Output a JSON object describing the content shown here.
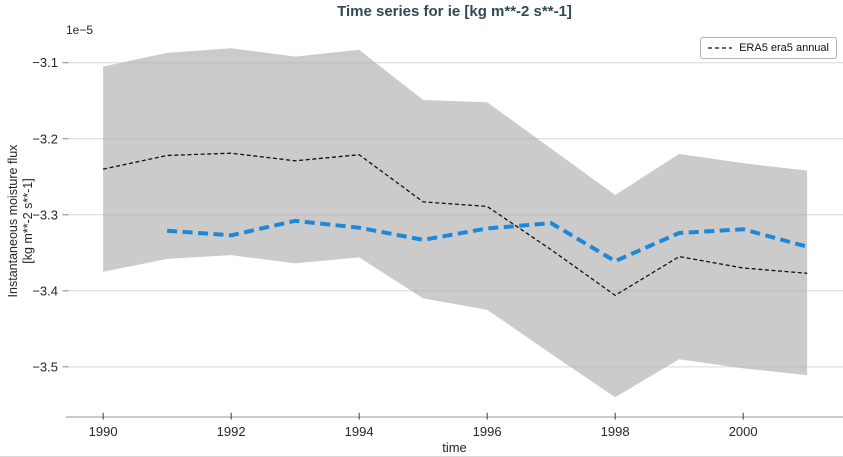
{
  "chart_data": {
    "type": "line",
    "title": "Time series for ie [kg m**-2 s**-1]",
    "xlabel": "time",
    "ylabel_lines": [
      "Instantaneous moisture flux",
      "[kg m**-2 s**-1]"
    ],
    "y_offset_label": "1e−5",
    "y_scale_factor": 1e-05,
    "grid": true,
    "grid_color": "#aaaaaa",
    "axis_color": "#949494",
    "tick_label_color": "#262626",
    "title_color": "#2d4b4f",
    "legend_position": "upper right",
    "xlim": [
      1989.42,
      2001.56
    ],
    "ylim_1e5": [
      -3.566,
      -3.053
    ],
    "x_ticks": [
      1990,
      1992,
      1994,
      1996,
      1998,
      2000
    ],
    "y_ticks_1e5": [
      -3.1,
      -3.2,
      -3.3,
      -3.4,
      -3.5
    ],
    "band": {
      "color": "#cbcbcb",
      "x": [
        1990,
        1991,
        1992,
        1993,
        1994,
        1995,
        1996,
        1997,
        1998,
        1999,
        2000,
        2001
      ],
      "top_1e5": [
        -3.105,
        -3.087,
        -3.081,
        -3.092,
        -3.083,
        -3.149,
        -3.152,
        -3.213,
        -3.274,
        -3.22,
        -3.232,
        -3.242
      ],
      "bottom_1e5": [
        -3.375,
        -3.358,
        -3.353,
        -3.364,
        -3.356,
        -3.41,
        -3.425,
        -3.483,
        -3.54,
        -3.49,
        -3.502,
        -3.511
      ]
    },
    "series": [
      {
        "id": "era5-annual",
        "legend_label": "ERA5 era5 annual",
        "color": "#111111",
        "line_style": "dashed",
        "line_width": 1.3,
        "x_start": 1990,
        "values_1e5": [
          -3.24,
          -3.222,
          -3.219,
          -3.229,
          -3.221,
          -3.283,
          -3.289,
          -3.346,
          -3.406,
          -3.355,
          -3.37,
          -3.377
        ]
      },
      {
        "id": "blue-dashed",
        "legend_label": null,
        "color": "#1e87d8",
        "line_style": "dashed",
        "line_width": 4,
        "x_start": 1991,
        "values_1e5": [
          -3.321,
          -3.327,
          -3.308,
          -3.317,
          -3.333,
          -3.318,
          -3.311,
          -3.361,
          -3.324,
          -3.319,
          -3.342
        ]
      }
    ]
  }
}
